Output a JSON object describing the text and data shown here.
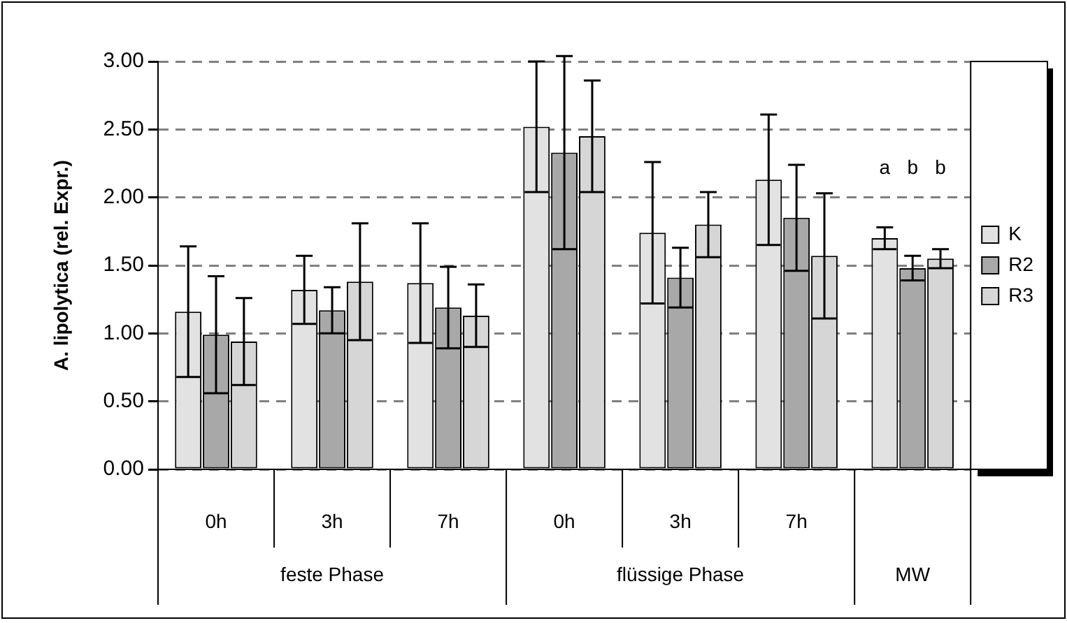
{
  "chart_data": {
    "type": "bar",
    "ylabel": "A. lipolytica (rel. Expr.)",
    "categories": [
      "0h",
      "3h",
      "7h",
      "0h",
      "3h",
      "7h",
      null
    ],
    "series": [
      {
        "name": "K",
        "color": "#e2e2e2",
        "values": [
          1.16,
          1.32,
          1.37,
          2.52,
          1.74,
          2.13,
          1.7
        ],
        "errors": [
          0.48,
          0.25,
          0.44,
          0.48,
          0.52,
          0.48,
          0.08
        ]
      },
      {
        "name": "R2",
        "color": "#a8a8a8",
        "values": [
          0.99,
          1.17,
          1.19,
          2.33,
          1.41,
          1.85,
          1.48
        ],
        "errors": [
          0.43,
          0.17,
          0.3,
          0.71,
          0.22,
          0.39,
          0.09
        ]
      },
      {
        "name": "R3",
        "color": "#d6d6d6",
        "values": [
          0.94,
          1.38,
          1.13,
          2.45,
          1.8,
          1.57,
          1.55
        ],
        "errors": [
          0.32,
          0.43,
          0.23,
          0.41,
          0.24,
          0.46,
          0.07
        ]
      }
    ],
    "ylim": [
      0,
      3
    ],
    "yticks": [
      {
        "value": 0,
        "label": "0.00"
      },
      {
        "value": 0.5,
        "label": "0.50"
      },
      {
        "value": 1,
        "label": "1.00"
      },
      {
        "value": 1.5,
        "label": "1.50"
      },
      {
        "value": 2,
        "label": "2.00"
      },
      {
        "value": 2.5,
        "label": "2.50"
      },
      {
        "value": 3,
        "label": "3.00"
      }
    ],
    "grid": "y",
    "legend": "right",
    "annotations": [
      "feste Phase",
      "flüssige Phase",
      "MW",
      "a",
      "b",
      "b"
    ]
  }
}
